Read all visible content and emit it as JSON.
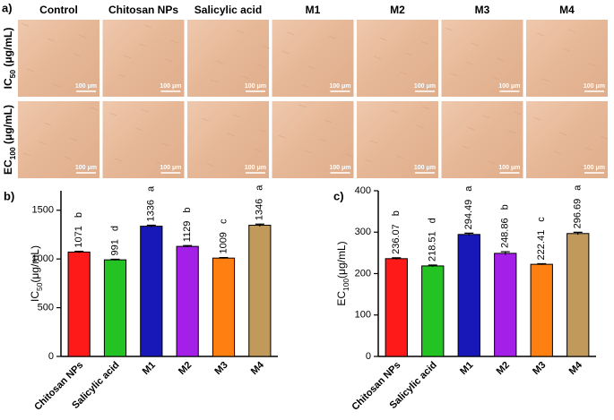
{
  "panel_a": {
    "label": "a)",
    "columns": [
      "Control",
      "Chitosan NPs",
      "Salicylic acid",
      "M1",
      "M2",
      "M3",
      "M4"
    ],
    "rows": [
      {
        "main": "IC",
        "sub": "50",
        "unit": " (μg/mL)"
      },
      {
        "main": "EC",
        "sub": "100",
        "unit": " (μg/mL)"
      }
    ],
    "scale_bar": "100 μm"
  },
  "chart_data": [
    {
      "type": "bar",
      "panel": "b)",
      "ylabel": {
        "main": "IC",
        "sub": "50",
        "unit": "(μg/mL)"
      },
      "categories": [
        "Chitosan NPs",
        "Salicylic acid",
        "M1",
        "M2",
        "M3",
        "M4"
      ],
      "values": [
        1071,
        991,
        1336,
        1129,
        1009,
        1346
      ],
      "errors": [
        8,
        6,
        10,
        8,
        6,
        12
      ],
      "significance": [
        "b",
        "d",
        "a",
        "b",
        "c",
        "a"
      ],
      "colors": [
        "#ff1a1a",
        "#22c322",
        "#1818b8",
        "#a41fe8",
        "#ff7f10",
        "#c19a5b"
      ],
      "ylim": [
        0,
        1700
      ],
      "yticks": [
        0,
        500,
        1000,
        1500
      ]
    },
    {
      "type": "bar",
      "panel": "c)",
      "ylabel": {
        "main": "EC",
        "sub": "100",
        "unit": "(μg/mL)"
      },
      "categories": [
        "Chitosan NPs",
        "Salicylic acid",
        "M1",
        "M2",
        "M3",
        "M4"
      ],
      "values": [
        236.07,
        218.51,
        294.49,
        248.86,
        222.41,
        296.69
      ],
      "errors": [
        2,
        2,
        3,
        4,
        1.5,
        3
      ],
      "significance": [
        "b",
        "d",
        "a",
        "b",
        "c",
        "a"
      ],
      "colors": [
        "#ff1a1a",
        "#22c322",
        "#1818b8",
        "#a41fe8",
        "#ff7f10",
        "#c19a5b"
      ],
      "ylim": [
        0,
        400
      ],
      "yticks": [
        0,
        100,
        200,
        300,
        400
      ]
    }
  ]
}
